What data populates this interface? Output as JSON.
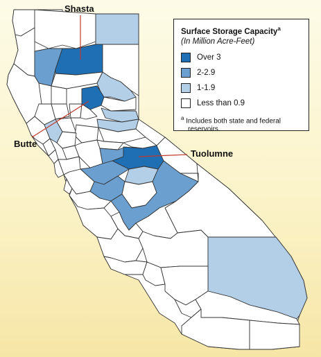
{
  "map": {
    "labels": {
      "shasta": "Shasta",
      "butte": "Butte",
      "tuolumne": "Tuolumne"
    }
  },
  "legend": {
    "title": "Surface Storage Capacity",
    "title_marker": "a",
    "subtitle": "(In Million Acre-Feet)",
    "items": [
      {
        "label": "Over 3",
        "color": "#1f6fb5"
      },
      {
        "label": "2-2.9",
        "color": "#6a9fd0"
      },
      {
        "label": "1-1.9",
        "color": "#b3cfe8"
      },
      {
        "label": "Less than 0.9",
        "color": "#ffffff"
      }
    ],
    "note_marker": "a",
    "note_line1": "Includes both state and federal",
    "note_line2": "reservoirs."
  },
  "colors": {
    "background_top": "#fdfbe8",
    "background_bottom": "#f6e6a6",
    "county_stroke": "#333333"
  }
}
